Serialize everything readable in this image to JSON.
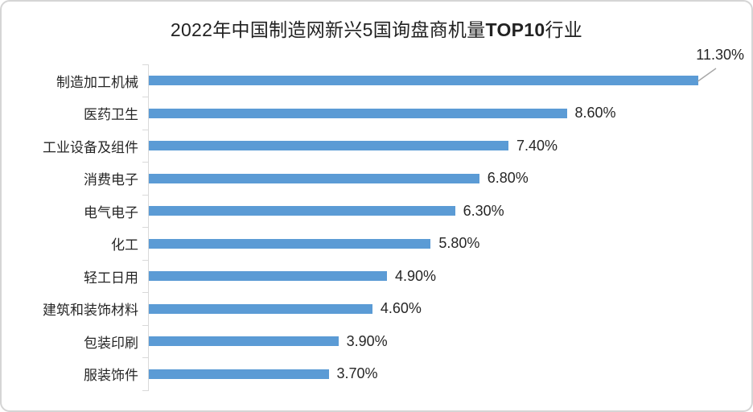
{
  "chart_data": {
    "type": "bar",
    "orientation": "horizontal",
    "title": "2022年中国制造网新兴5国询盘商机量TOP10行业",
    "title_parts": {
      "prefix": "2022年中国制造网新兴5国询盘商机量",
      "bold": "TOP10",
      "suffix": "行业"
    },
    "categories": [
      "制造加工机械",
      "医药卫生",
      "工业设备及组件",
      "消费电子",
      "电气电子",
      "化工",
      "轻工日用",
      "建筑和装饰材料",
      "包装印刷",
      "服装饰件"
    ],
    "values": [
      11.3,
      8.6,
      7.4,
      6.8,
      6.3,
      5.8,
      4.9,
      4.6,
      3.9,
      3.7
    ],
    "labels": [
      "11.30%",
      "8.60%",
      "7.40%",
      "6.80%",
      "6.30%",
      "5.80%",
      "4.90%",
      "4.60%",
      "3.90%",
      "3.70%"
    ],
    "xlabel": "",
    "ylabel": "",
    "xlim": [
      0,
      12.25
    ],
    "grid": false,
    "legend": "none",
    "bar_color": "#5b9bd5",
    "axis_color": "#d9d9d9",
    "callout": {
      "index": 0,
      "line_color": "#a6a6a6"
    }
  }
}
